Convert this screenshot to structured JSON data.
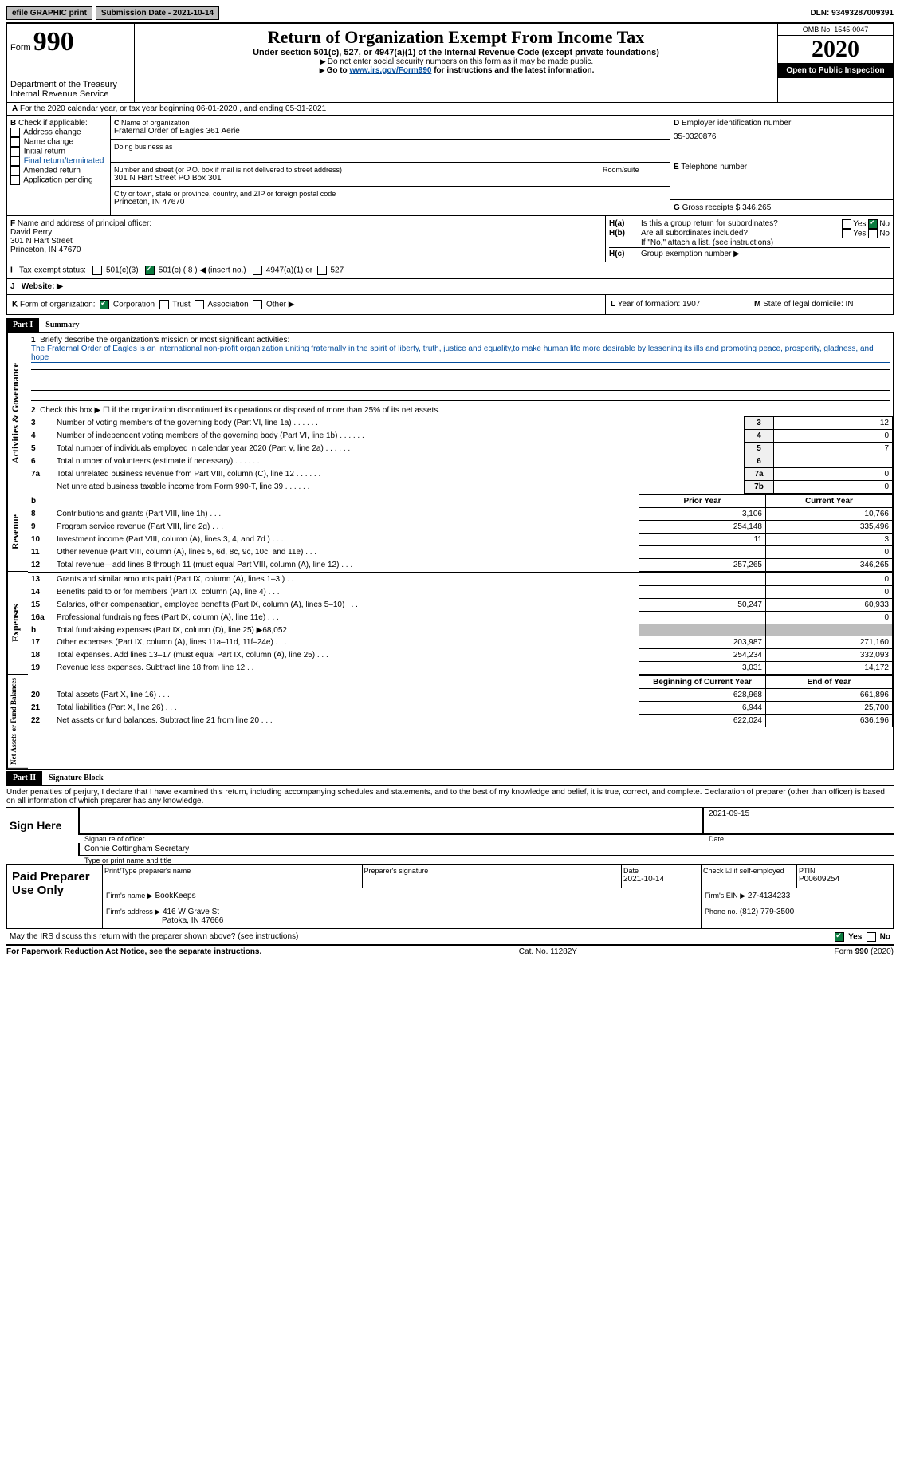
{
  "topbar": {
    "efile": "efile GRAPHIC print",
    "submission_label": "Submission Date - ",
    "submission_date": "2021-10-14",
    "dln_label": "DLN: ",
    "dln": "93493287009391"
  },
  "header": {
    "form_word": "Form",
    "form_num": "990",
    "dept1": "Department of the Treasury",
    "dept2": "Internal Revenue Service",
    "title": "Return of Organization Exempt From Income Tax",
    "sub1": "Under section 501(c), 527, or 4947(a)(1) of the Internal Revenue Code (except private foundations)",
    "sub2": "Do not enter social security numbers on this form as it may be made public.",
    "sub3_pre": "Go to ",
    "sub3_link": "www.irs.gov/Form990",
    "sub3_post": " for instructions and the latest information.",
    "omb": "OMB No. 1545-0047",
    "year": "2020",
    "open": "Open to Public Inspection"
  },
  "periodA": "For the 2020 calendar year, or tax year beginning 06-01-2020    , and ending 05-31-2021",
  "boxB": {
    "label": "Check if applicable:",
    "addr": "Address change",
    "name": "Name change",
    "init": "Initial return",
    "final": "Final return/terminated",
    "amend": "Amended return",
    "app": "Application pending"
  },
  "boxC": {
    "name_label": "Name of organization",
    "org_name": "Fraternal Order of Eagles 361 Aerie",
    "dba_label": "Doing business as",
    "street_label": "Number and street (or P.O. box if mail is not delivered to street address)",
    "room_label": "Room/suite",
    "street": "301 N Hart Street PO Box 301",
    "city_label": "City or town, state or province, country, and ZIP or foreign postal code",
    "city": "Princeton, IN  47670"
  },
  "boxD": {
    "label": "Employer identification number",
    "ein": "35-0320876"
  },
  "boxE": {
    "label": "Telephone number",
    "val": ""
  },
  "boxG": {
    "label": "Gross receipts $",
    "val": "346,265"
  },
  "boxF": {
    "label": "Name and address of principal officer:",
    "name": "David Perry",
    "addr1": "301 N Hart Street",
    "addr2": "Princeton, IN  47670"
  },
  "boxH": {
    "a_label": "Is this a group return for subordinates?",
    "b_label": "Are all subordinates included?",
    "note": "If \"No,\" attach a list. (see instructions)",
    "c_label": "Group exemption number ▶",
    "yes": "Yes",
    "no": "No"
  },
  "lineI": {
    "label": "Tax-exempt status:",
    "o1": "501(c)(3)",
    "o2": "501(c) ( 8 ) ◀ (insert no.)",
    "o3": "4947(a)(1) or",
    "o4": "527"
  },
  "lineJ": {
    "label": "Website: ▶"
  },
  "lineK": {
    "label": "Form of organization:",
    "corp": "Corporation",
    "trust": "Trust",
    "assoc": "Association",
    "other": "Other ▶"
  },
  "lineL": {
    "label": "Year of formation:",
    "val": "1907"
  },
  "lineM": {
    "label": "State of legal domicile:",
    "val": "IN"
  },
  "partI": {
    "hdr": "Part I",
    "title": "Summary",
    "l1_label": "Briefly describe the organization's mission or most significant activities:",
    "l1_text": "The Fraternal Order of Eagles is an international non-profit organization uniting fraternally in the spirit of liberty, truth, justice and equality,to make human life more desirable by lessening its ills and promoting peace, prosperity, gladness, and hope",
    "l2": "Check this box ▶ ☐ if the organization discontinued its operations or disposed of more than 25% of its net assets.",
    "sideA": "Activities & Governance",
    "sideR": "Revenue",
    "sideE": "Expenses",
    "sideN": "Net Assets or Fund Balances",
    "col_prior": "Prior Year",
    "col_curr": "Current Year",
    "col_begin": "Beginning of Current Year",
    "col_end": "End of Year",
    "rows_gov": [
      {
        "n": "3",
        "t": "Number of voting members of the governing body (Part VI, line 1a)",
        "box": "3",
        "v": "12"
      },
      {
        "n": "4",
        "t": "Number of independent voting members of the governing body (Part VI, line 1b)",
        "box": "4",
        "v": "0"
      },
      {
        "n": "5",
        "t": "Total number of individuals employed in calendar year 2020 (Part V, line 2a)",
        "box": "5",
        "v": "7"
      },
      {
        "n": "6",
        "t": "Total number of volunteers (estimate if necessary)",
        "box": "6",
        "v": ""
      },
      {
        "n": "7a",
        "t": "Total unrelated business revenue from Part VIII, column (C), line 12",
        "box": "7a",
        "v": "0"
      },
      {
        "n": "",
        "t": "Net unrelated business taxable income from Form 990-T, line 39",
        "box": "7b",
        "v": "0"
      }
    ],
    "rows_rev": [
      {
        "n": "b",
        "t": ""
      },
      {
        "n": "8",
        "t": "Contributions and grants (Part VIII, line 1h)",
        "p": "3,106",
        "c": "10,766"
      },
      {
        "n": "9",
        "t": "Program service revenue (Part VIII, line 2g)",
        "p": "254,148",
        "c": "335,496"
      },
      {
        "n": "10",
        "t": "Investment income (Part VIII, column (A), lines 3, 4, and 7d )",
        "p": "11",
        "c": "3"
      },
      {
        "n": "11",
        "t": "Other revenue (Part VIII, column (A), lines 5, 6d, 8c, 9c, 10c, and 11e)",
        "p": "",
        "c": "0"
      },
      {
        "n": "12",
        "t": "Total revenue—add lines 8 through 11 (must equal Part VIII, column (A), line 12)",
        "p": "257,265",
        "c": "346,265"
      }
    ],
    "rows_exp": [
      {
        "n": "13",
        "t": "Grants and similar amounts paid (Part IX, column (A), lines 1–3 )",
        "p": "",
        "c": "0"
      },
      {
        "n": "14",
        "t": "Benefits paid to or for members (Part IX, column (A), line 4)",
        "p": "",
        "c": "0"
      },
      {
        "n": "15",
        "t": "Salaries, other compensation, employee benefits (Part IX, column (A), lines 5–10)",
        "p": "50,247",
        "c": "60,933"
      },
      {
        "n": "16a",
        "t": "Professional fundraising fees (Part IX, column (A), line 11e)",
        "p": "",
        "c": "0"
      },
      {
        "n": "b",
        "t": "Total fundraising expenses (Part IX, column (D), line 25) ▶68,052",
        "shade": true
      },
      {
        "n": "17",
        "t": "Other expenses (Part IX, column (A), lines 11a–11d, 11f–24e)",
        "p": "203,987",
        "c": "271,160"
      },
      {
        "n": "18",
        "t": "Total expenses. Add lines 13–17 (must equal Part IX, column (A), line 25)",
        "p": "254,234",
        "c": "332,093"
      },
      {
        "n": "19",
        "t": "Revenue less expenses. Subtract line 18 from line 12",
        "p": "3,031",
        "c": "14,172"
      }
    ],
    "rows_net": [
      {
        "n": "20",
        "t": "Total assets (Part X, line 16)",
        "p": "628,968",
        "c": "661,896"
      },
      {
        "n": "21",
        "t": "Total liabilities (Part X, line 26)",
        "p": "6,944",
        "c": "25,700"
      },
      {
        "n": "22",
        "t": "Net assets or fund balances. Subtract line 21 from line 20",
        "p": "622,024",
        "c": "636,196"
      }
    ]
  },
  "partII": {
    "hdr": "Part II",
    "title": "Signature Block",
    "decl": "Under penalties of perjury, I declare that I have examined this return, including accompanying schedules and statements, and to the best of my knowledge and belief, it is true, correct, and complete. Declaration of preparer (other than officer) is based on all information of which preparer has any knowledge.",
    "sign_here": "Sign Here",
    "sig_officer": "Signature of officer",
    "sig_date": "2021-09-15",
    "date_lbl": "Date",
    "officer": "Connie Cottingham Secretary",
    "type_name": "Type or print name and title",
    "paid": "Paid Preparer Use Only",
    "prep_name_lbl": "Print/Type preparer's name",
    "prep_sig_lbl": "Preparer's signature",
    "prep_date": "2021-10-14",
    "check_self": "Check ☑ if self-employed",
    "ptin_lbl": "PTIN",
    "ptin": "P00609254",
    "firm_name_lbl": "Firm's name  ▶",
    "firm_name": "BookKeeps",
    "firm_ein_lbl": "Firm's EIN ▶",
    "firm_ein": "27-4134233",
    "firm_addr_lbl": "Firm's address ▶",
    "firm_addr1": "416 W Grave St",
    "firm_addr2": "Patoka, IN  47666",
    "phone_lbl": "Phone no.",
    "phone": "(812) 779-3500",
    "may_irs": "May the IRS discuss this return with the preparer shown above? (see instructions)"
  },
  "footer": {
    "pra": "For Paperwork Reduction Act Notice, see the separate instructions.",
    "cat": "Cat. No. 11282Y",
    "form": "Form 990 (2020)"
  }
}
